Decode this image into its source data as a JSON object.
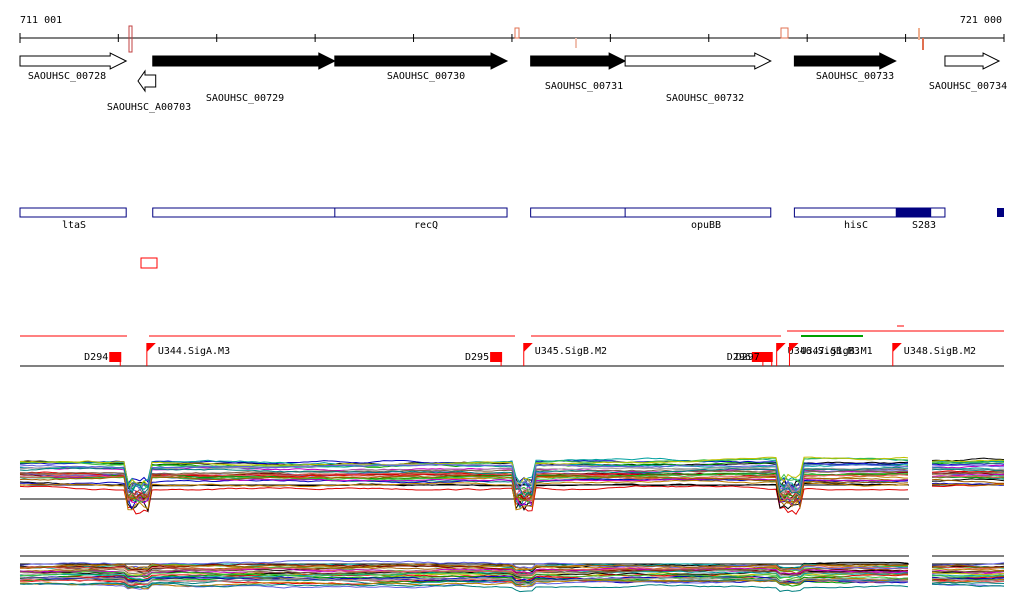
{
  "ruler": {
    "start_label": "711 001",
    "end_label": "721 000",
    "start": 711001,
    "end": 721000
  },
  "genes": [
    {
      "id": "SAOUHSC_00728",
      "start": 711001,
      "end": 712080,
      "strand": "+",
      "style": "open",
      "label_below": "upper"
    },
    {
      "id": "SAOUHSC_A00703",
      "start": 712200,
      "end": 712380,
      "strand": "-",
      "style": "open",
      "label_below": "lower"
    },
    {
      "id": "SAOUHSC_00729",
      "start": 712350,
      "end": 714200,
      "strand": "+",
      "style": "filled",
      "label_below": "lower"
    },
    {
      "id": "SAOUHSC_00730",
      "start": 714200,
      "end": 715950,
      "strand": "+",
      "style": "filled",
      "label_below": "upper"
    },
    {
      "id": "SAOUHSC_00731",
      "start": 716190,
      "end": 717150,
      "strand": "+",
      "style": "filled",
      "label_below": "upper"
    },
    {
      "id": "SAOUHSC_00732",
      "start": 717150,
      "end": 718630,
      "strand": "+",
      "style": "open",
      "label_below": "lower"
    },
    {
      "id": "SAOUHSC_00733",
      "start": 718870,
      "end": 719900,
      "strand": "+",
      "style": "filled",
      "label_below": "upper"
    },
    {
      "id": "SAOUHSC_00734",
      "start": 720400,
      "end": 720950,
      "strand": "+",
      "style": "open",
      "label_below": "upper"
    }
  ],
  "features": [
    {
      "label": "ltaS",
      "start": 711001,
      "end": 712080,
      "fill": "open"
    },
    {
      "label": "recQ",
      "start": 712350,
      "end": 715950,
      "divider": 714200,
      "fill": "open"
    },
    {
      "label": "opuBB",
      "start": 716190,
      "end": 718630,
      "divider": 717150,
      "fill": "open"
    },
    {
      "label": "hisC",
      "start": 718870,
      "end": 720400,
      "fill": "open"
    },
    {
      "label": "S283",
      "start": 719900,
      "end": 720260,
      "fill": "solid"
    }
  ],
  "transcription_units": [
    {
      "label": "D294",
      "type": "D",
      "position": 712030
    },
    {
      "label": "U344.SigA.M3",
      "type": "U",
      "position": 712290
    },
    {
      "label": "D295",
      "type": "D",
      "position": 715900
    },
    {
      "label": "U345.SigB.M2",
      "type": "U",
      "position": 716120
    },
    {
      "label": "D296",
      "type": "D",
      "position": 718560
    },
    {
      "label": "D297",
      "type": "D",
      "position": 718650
    },
    {
      "label": "U346.SigB.M3",
      "type": "U",
      "position": 718690
    },
    {
      "label": "U347.SigB.M1",
      "type": "U",
      "position": 718820
    },
    {
      "label": "U348.SigB.M2",
      "type": "U",
      "position": 719870
    }
  ],
  "colors": {
    "gene_fill": "#000000",
    "feature_stroke": "#000080",
    "feature_solid": "#000080",
    "unit_red": "#ff0000",
    "green_bar": "#00a000"
  }
}
